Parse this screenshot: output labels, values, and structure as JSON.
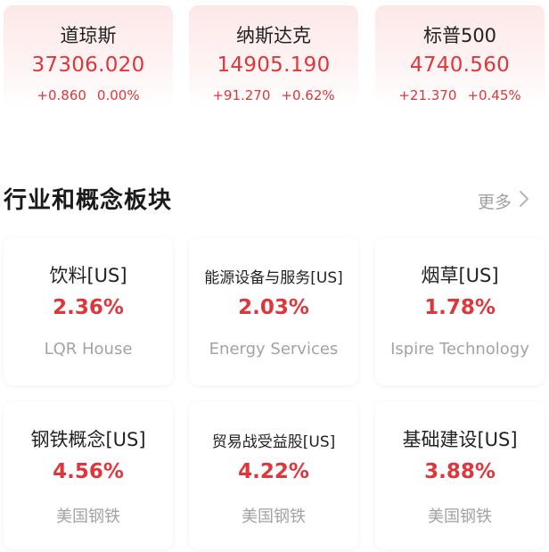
{
  "indices": [
    {
      "name": "道琼斯",
      "value": "37306.020",
      "change": "+0.860",
      "pct": "0.00%"
    },
    {
      "name": "纳斯达克",
      "value": "14905.190",
      "change": "+91.270",
      "pct": "+0.62%"
    },
    {
      "name": "标普500",
      "value": "4740.560",
      "change": "+21.370",
      "pct": "+0.45%"
    }
  ],
  "section": {
    "title": "行业和概念板块",
    "more_label": "更多"
  },
  "sectors": [
    {
      "name": "饮料[US]",
      "pct": "2.36%",
      "stock": "LQR House"
    },
    {
      "name": "能源设备与服务[US]",
      "pct": "2.03%",
      "stock": "Energy Services"
    },
    {
      "name": "烟草[US]",
      "pct": "1.78%",
      "stock": "Ispire Technology"
    },
    {
      "name": "钢铁概念[US]",
      "pct": "4.56%",
      "stock": "美国钢铁"
    },
    {
      "name": "贸易战受益股[US]",
      "pct": "4.22%",
      "stock": "美国钢铁"
    },
    {
      "name": "基础建设[US]",
      "pct": "3.88%",
      "stock": "美国钢铁"
    }
  ],
  "colors": {
    "up_red": "#e0363b",
    "muted_gray": "#a3a3a3",
    "card_tint": "#fde8e8"
  },
  "icons": {
    "more": "chevron-right-icon"
  }
}
